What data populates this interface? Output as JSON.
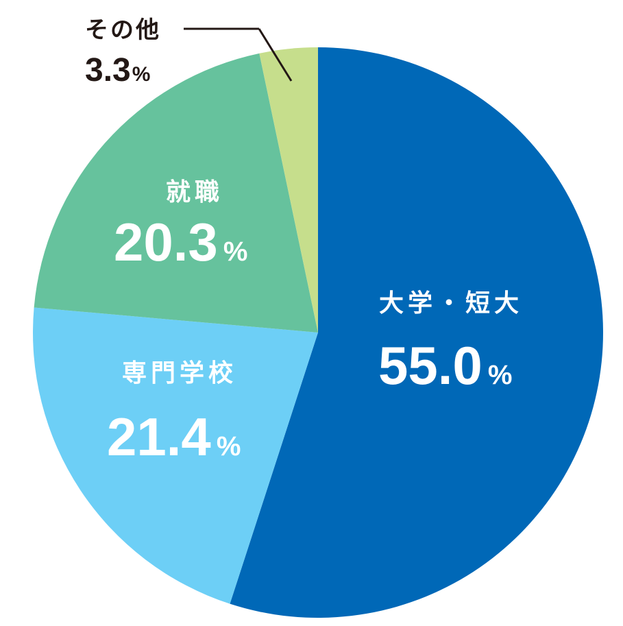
{
  "chart_data": {
    "type": "pie",
    "start_angle_deg": 0,
    "direction": "clockwise",
    "slices": [
      {
        "label": "大学・短大",
        "value": 55.0,
        "display": "55.0",
        "unit": "%",
        "color": "#0068b7",
        "text_color": "#ffffff"
      },
      {
        "label": "専門学校",
        "value": 21.4,
        "display": "21.4",
        "unit": "%",
        "color": "#6dcff6",
        "text_color": "#ffffff"
      },
      {
        "label": "就職",
        "value": 20.3,
        "display": "20.3",
        "unit": "%",
        "color": "#66c29d",
        "text_color": "#ffffff"
      },
      {
        "label": "その他",
        "value": 3.3,
        "display": "3.3",
        "unit": "%",
        "color": "#c6de8c",
        "text_color": "#231815"
      }
    ]
  }
}
